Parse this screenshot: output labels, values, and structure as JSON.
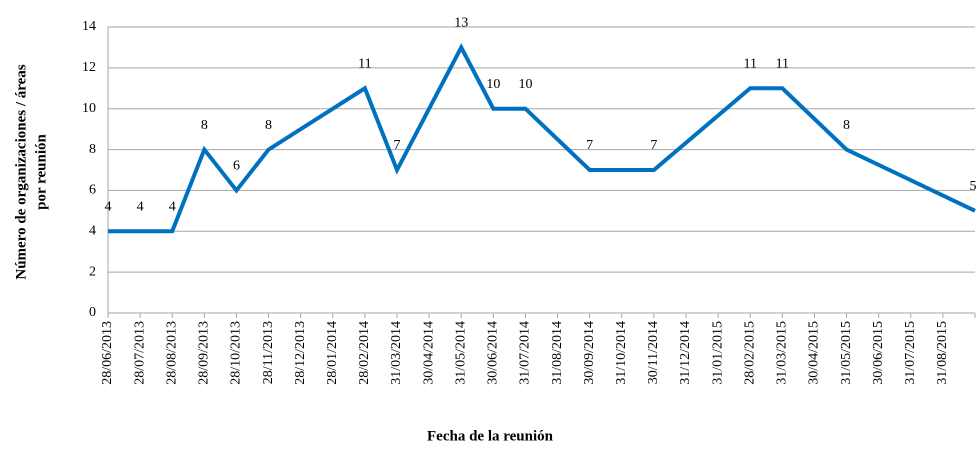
{
  "chart_data": {
    "type": "line",
    "y_label": [
      "Número de organizaciones / áreas",
      "por reunión"
    ],
    "x_label": "Fecha de la reunión",
    "categories": [
      "28/06/2013",
      "28/07/2013",
      "28/08/2013",
      "28/09/2013",
      "28/10/2013",
      "28/11/2013",
      "28/12/2013",
      "28/01/2014",
      "28/02/2014",
      "31/03/2014",
      "30/04/2014",
      "31/05/2014",
      "30/06/2014",
      "31/07/2014",
      "31/08/2014",
      "30/09/2014",
      "31/10/2014",
      "30/11/2014",
      "31/12/2014",
      "31/01/2015",
      "28/02/2015",
      "31/03/2015",
      "30/04/2015",
      "31/05/2015",
      "30/06/2015",
      "31/07/2015",
      "31/08/2015",
      null
    ],
    "series": [
      {
        "color": "#0070c0",
        "values": [
          4,
          4,
          4,
          8,
          6,
          8,
          null,
          null,
          11,
          7,
          null,
          13,
          10,
          10,
          null,
          7,
          null,
          7,
          null,
          null,
          11,
          11,
          null,
          8,
          null,
          null,
          null,
          5
        ]
      }
    ],
    "connect_gaps": true,
    "data_labels": true,
    "ylim": [
      0,
      14
    ],
    "yticks": [
      0,
      2,
      4,
      6,
      8,
      10,
      12,
      14
    ],
    "grid": true
  }
}
